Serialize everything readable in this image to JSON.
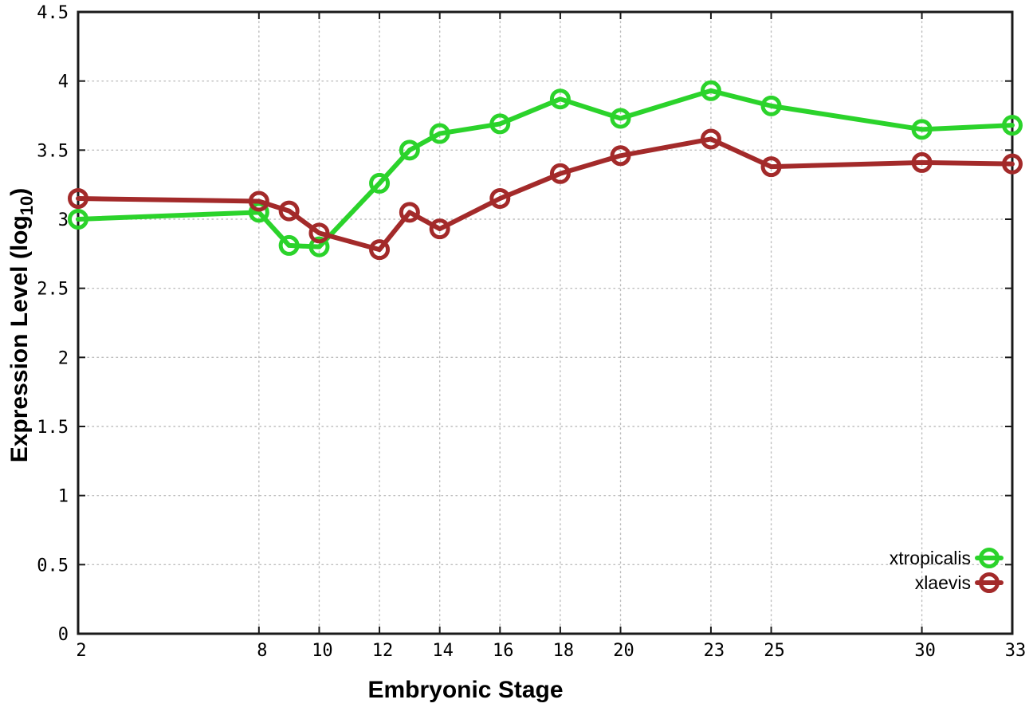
{
  "chart_data": {
    "type": "line",
    "title": "",
    "xlabel": "Embryonic Stage",
    "ylabel": "Expression Level (log10)",
    "ylabel_parts": {
      "prefix": "Expression Level (log",
      "sub": "10",
      "suffix": ")"
    },
    "x": [
      2,
      8,
      9,
      10,
      12,
      13,
      14,
      16,
      18,
      20,
      23,
      25,
      30,
      33
    ],
    "series": [
      {
        "name": "xtropicalis",
        "color": "#2bd32b",
        "values": [
          3.0,
          3.05,
          2.81,
          2.8,
          3.26,
          3.5,
          3.62,
          3.69,
          3.87,
          3.73,
          3.93,
          3.82,
          3.65,
          3.68
        ]
      },
      {
        "name": "xlaevis",
        "color": "#a32a2a",
        "values": [
          3.15,
          3.13,
          3.06,
          2.9,
          2.78,
          3.05,
          2.93,
          3.15,
          3.33,
          3.46,
          3.58,
          3.38,
          3.41,
          3.4
        ]
      }
    ],
    "xlim": [
      2,
      33
    ],
    "ylim": [
      0,
      4.5
    ],
    "xticks": [
      2,
      8,
      10,
      12,
      14,
      16,
      18,
      20,
      23,
      25,
      30,
      33
    ],
    "xtick_labels": [
      "2",
      "8",
      "10",
      "12",
      "14",
      "16",
      "18",
      "20",
      "23",
      "25",
      "30",
      "33"
    ],
    "yticks": [
      0,
      0.5,
      1,
      1.5,
      2,
      2.5,
      3,
      3.5,
      4,
      4.5
    ],
    "ytick_labels": [
      "0",
      "0.5",
      "1",
      "1.5",
      "2",
      "2.5",
      "3",
      "3.5",
      "4",
      "4.5"
    ],
    "grid": true,
    "legend_position": "bottom-right",
    "legend": [
      "xtropicalis",
      "xlaevis"
    ],
    "colors": {
      "background": "#ffffff",
      "grid": "#bdbdbd",
      "axis": "#1a1a1a",
      "text": "#000000"
    }
  }
}
